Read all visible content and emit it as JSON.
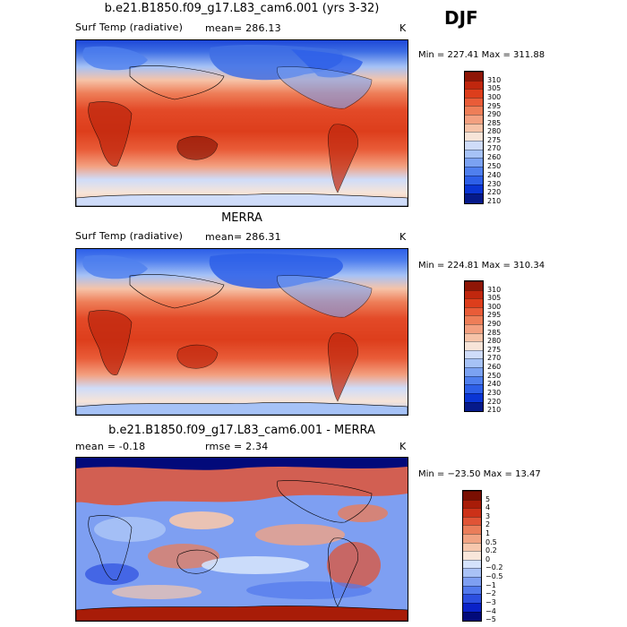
{
  "season": "DJF",
  "colors": {
    "temp_scale": [
      "#061a8a",
      "#0a35d4",
      "#2d5fe8",
      "#4f7fee",
      "#7ba2f2",
      "#a6c2f6",
      "#cfdcf9",
      "#f7e4d8",
      "#f6c3a8",
      "#f3a080",
      "#ee7e58",
      "#e95c38",
      "#dd3e1c",
      "#c0270e",
      "#8f1606"
    ],
    "diff_scale": [
      "#020a7a",
      "#0a22c8",
      "#2c4fe0",
      "#5279ec",
      "#7e9ff2",
      "#a9c2f6",
      "#d4e2fb",
      "#f8e6da",
      "#f6c7ad",
      "#f1a383",
      "#ea7d5a",
      "#e05436",
      "#cc3118",
      "#a81c08",
      "#7a0f02"
    ],
    "ocean_warm": "#e8573a",
    "ocean_cool": "#3f6fe4"
  },
  "panels": [
    {
      "title": "b.e21.B1850.f09_g17.L83_cam6.001 (yrs 3-32)",
      "left_label": "Surf Temp (radiative)",
      "mid_label": "mean=  286.13",
      "right_label": "K",
      "minmax": "Min = 227.41 Max = 311.88"
    },
    {
      "title": "MERRA",
      "left_label": "Surf Temp (radiative)",
      "mid_label": "mean=  286.31",
      "right_label": "K",
      "minmax": "Min = 224.81 Max = 310.34"
    },
    {
      "title": "b.e21.B1850.f09_g17.L83_cam6.001 - MERRA",
      "left_label": "mean =   -0.18",
      "mid_label": "rmse =    2.34",
      "right_label": "K",
      "minmax": "Min = −23.50 Max =  13.47"
    }
  ],
  "chart_data": [
    {
      "type": "heatmap",
      "title": "b.e21.B1850.f09_g17.L83_cam6.001 (yrs 3-32)",
      "variable": "Surf Temp (radiative)",
      "units": "K",
      "mean": 286.13,
      "min": 227.41,
      "max": 311.88,
      "levels": [
        "310",
        "305",
        "300",
        "295",
        "290",
        "285",
        "280",
        "275",
        "270",
        "260",
        "250",
        "240",
        "230",
        "220",
        "210"
      ]
    },
    {
      "type": "heatmap",
      "title": "MERRA",
      "variable": "Surf Temp (radiative)",
      "units": "K",
      "mean": 286.31,
      "min": 224.81,
      "max": 310.34,
      "levels": [
        "310",
        "305",
        "300",
        "295",
        "290",
        "285",
        "280",
        "275",
        "270",
        "260",
        "250",
        "240",
        "230",
        "220",
        "210"
      ]
    },
    {
      "type": "heatmap",
      "title": "b.e21.B1850.f09_g17.L83_cam6.001 - MERRA",
      "units": "K",
      "mean": -0.18,
      "rmse": 2.34,
      "min": -23.5,
      "max": 13.47,
      "levels": [
        "5",
        "4",
        "3",
        "2",
        "1",
        "0.5",
        "0.2",
        "0",
        "−0.2",
        "−0.5",
        "−1",
        "−2",
        "−3",
        "−4",
        "−5"
      ]
    }
  ]
}
